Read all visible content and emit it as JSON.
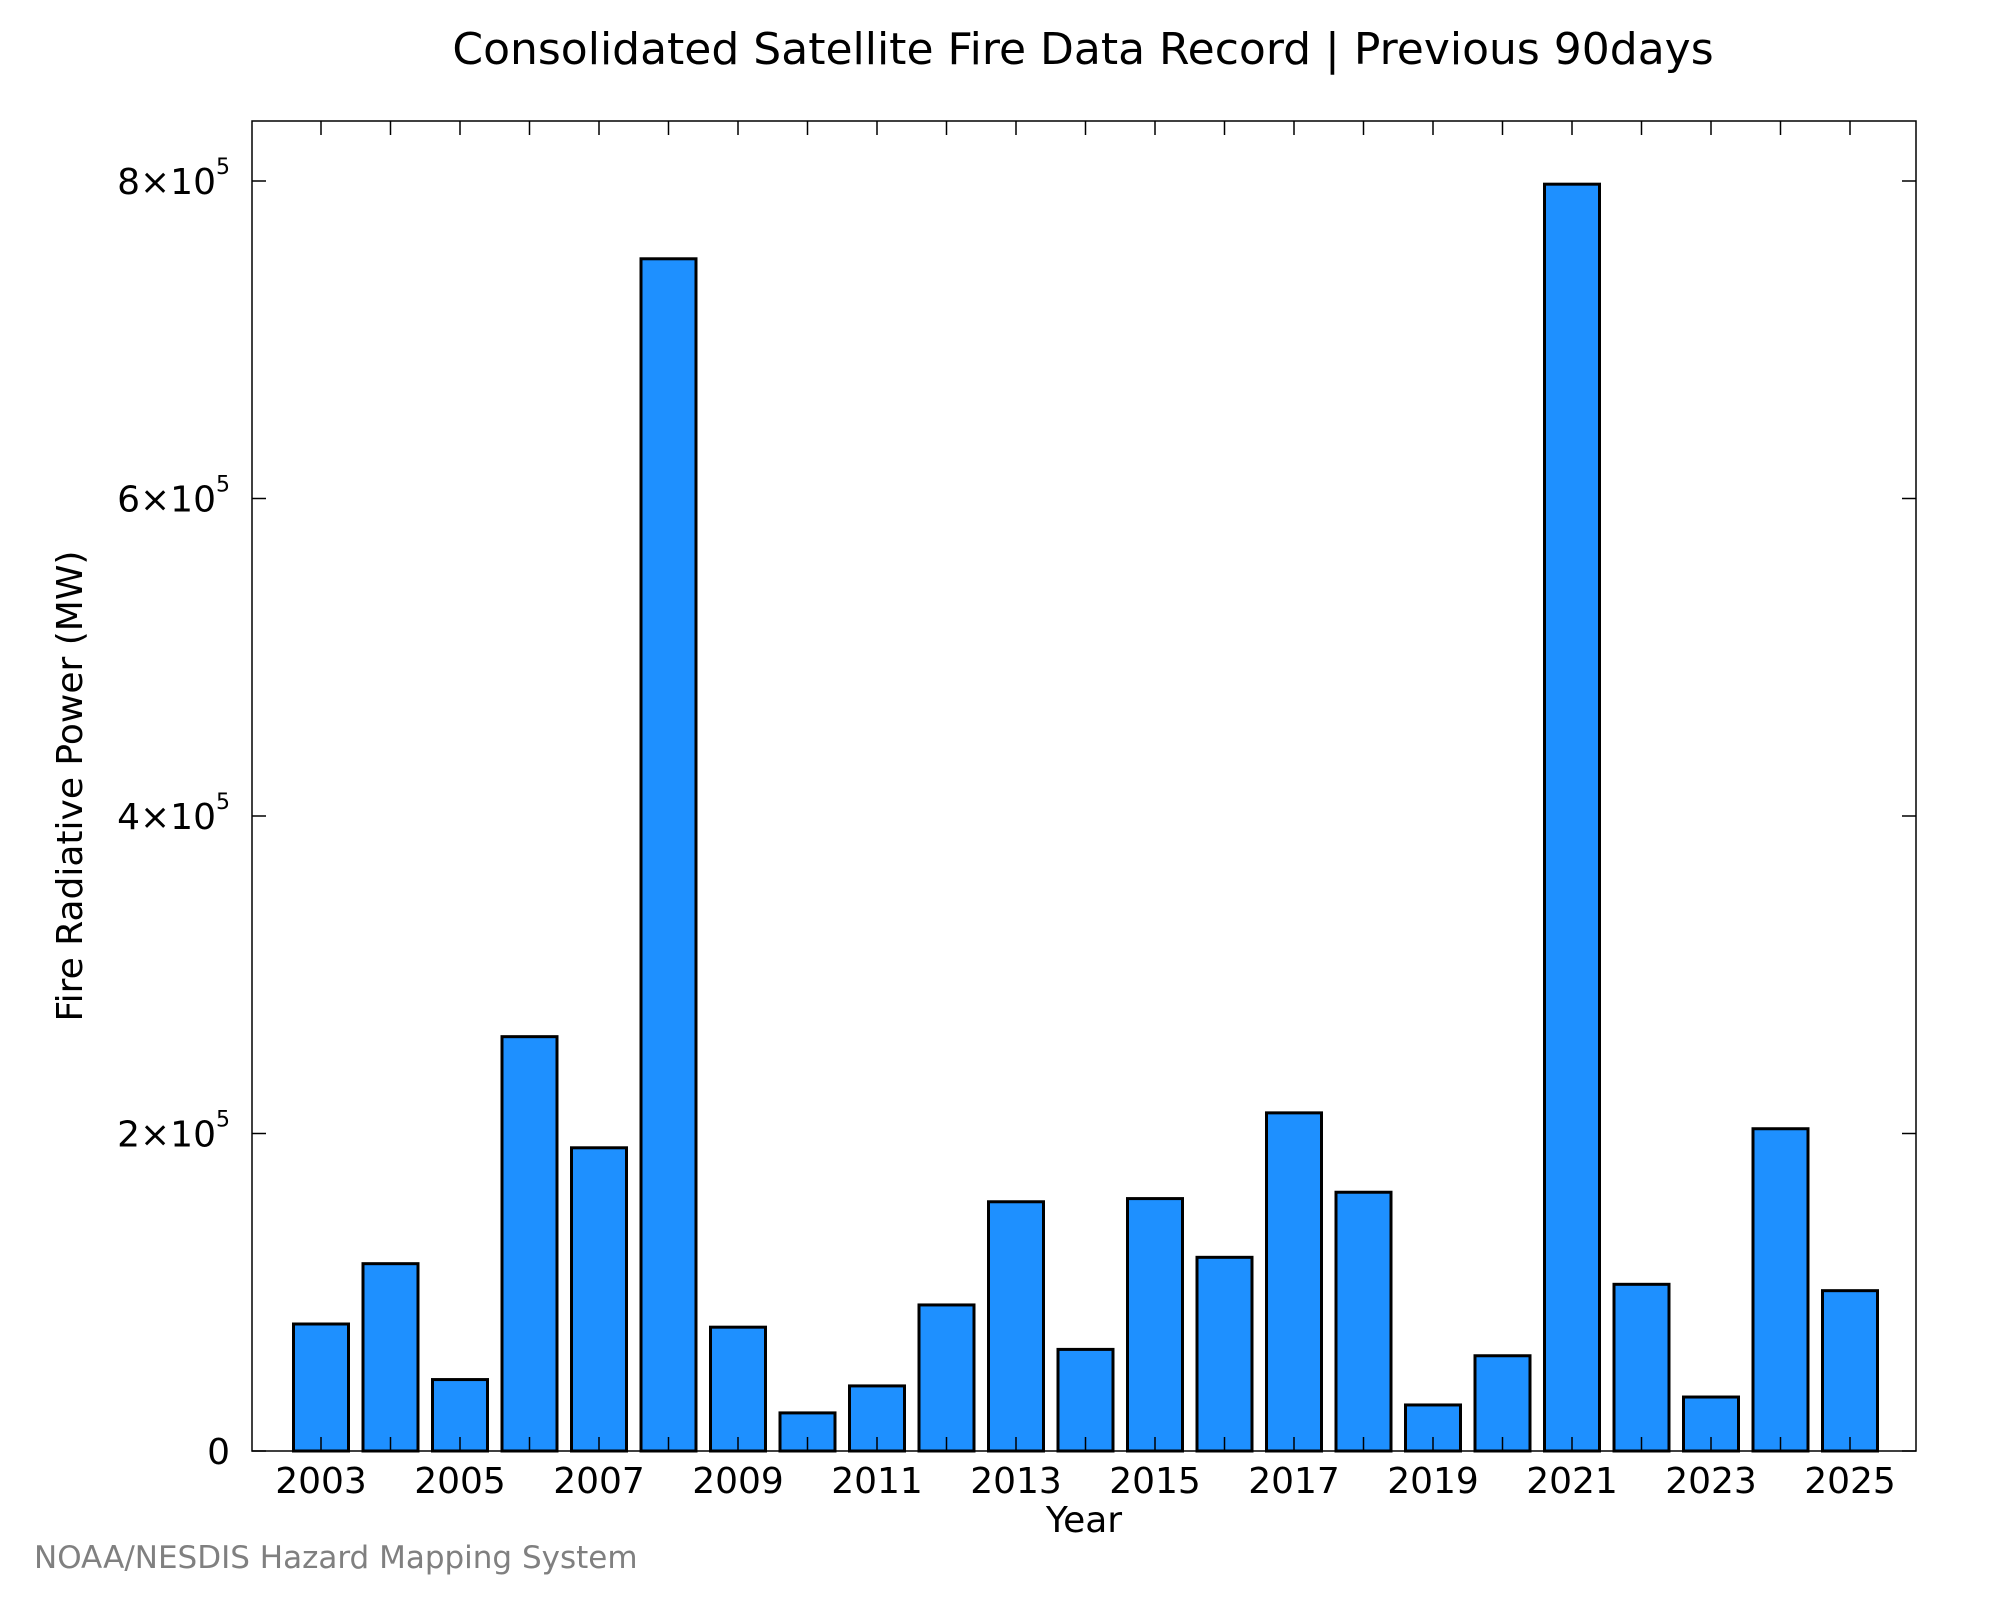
{
  "chart_data": {
    "type": "bar",
    "title": "Consolidated Satellite Fire Data Record | Previous 90days",
    "xlabel": "Year",
    "ylabel": "Fire Radiative Power (MW)",
    "categories": [
      "2003",
      "2004",
      "2005",
      "2006",
      "2007",
      "2008",
      "2009",
      "2010",
      "2011",
      "2012",
      "2013",
      "2014",
      "2015",
      "2016",
      "2017",
      "2018",
      "2019",
      "2020",
      "2021",
      "2022",
      "2023",
      "2024",
      "2025"
    ],
    "values": [
      80000,
      118000,
      45000,
      261000,
      191000,
      751000,
      78000,
      24000,
      41000,
      92000,
      157000,
      64000,
      159000,
      122000,
      213000,
      163000,
      29000,
      60000,
      798000,
      105000,
      34000,
      203000,
      101000
    ],
    "ylim": [
      0,
      837000
    ],
    "x_tick_labels": [
      "2003",
      "2005",
      "2007",
      "2009",
      "2011",
      "2013",
      "2015",
      "2017",
      "2019",
      "2021",
      "2023",
      "2025"
    ],
    "y_ticks": [
      {
        "value": 0,
        "mantissa": "0",
        "exponent": ""
      },
      {
        "value": 200000,
        "mantissa": "2×10",
        "exponent": "5"
      },
      {
        "value": 400000,
        "mantissa": "4×10",
        "exponent": "5"
      },
      {
        "value": 600000,
        "mantissa": "6×10",
        "exponent": "5"
      },
      {
        "value": 800000,
        "mantissa": "8×10",
        "exponent": "5"
      }
    ],
    "bar_color": "#1e90ff",
    "grid": false
  },
  "credit": "NOAA/NESDIS Hazard Mapping System"
}
